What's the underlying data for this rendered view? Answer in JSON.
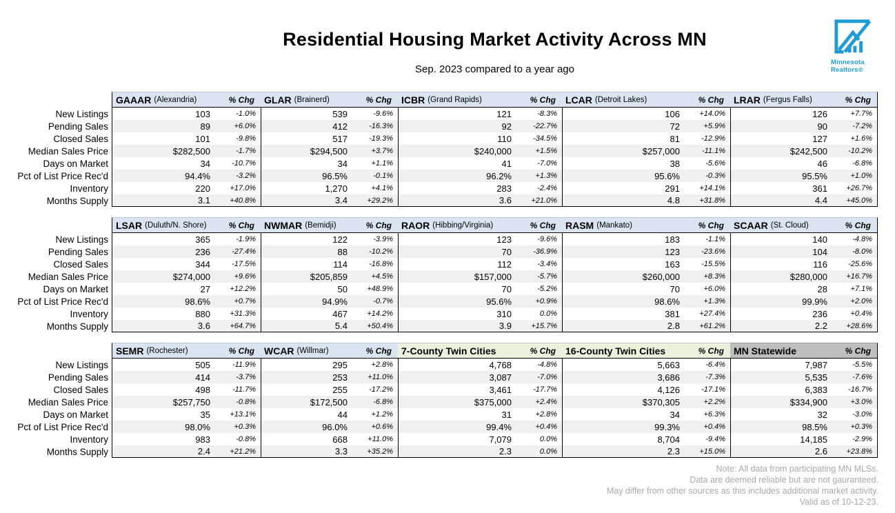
{
  "title": "Residential Housing Market Activity Across MN",
  "subtitle": "Sep. 2023 compared to a year ago",
  "logo": {
    "name_line1": "Minnesota",
    "name_line2": "Realtors®",
    "color": "#1d9bd8"
  },
  "colors": {
    "header_blue": "#dbe5f1",
    "header_green": "#eaf1dd",
    "header_gray": "#bfbfbf",
    "row_stripe": "#f0f0f0",
    "footer_gray": "#a9a9a9"
  },
  "pct_chg_label": "% Chg",
  "row_labels": [
    "New Listings",
    "Pending Sales",
    "Closed Sales",
    "Median Sales Price",
    "Days on Market",
    "Pct of List Price Rec'd",
    "Inventory",
    "Months Supply"
  ],
  "tables": [
    {
      "columns": [
        {
          "acronym": "GAAAR",
          "region": "(Alexandria)",
          "style": "blue",
          "values": [
            "103",
            "89",
            "101",
            "$282,500",
            "34",
            "94.4%",
            "220",
            "3.1"
          ],
          "changes": [
            "-1.0%",
            "+6.0%",
            "-9.8%",
            "-1.7%",
            "-10.7%",
            "-3.2%",
            "+17.0%",
            "+40.8%"
          ]
        },
        {
          "acronym": "GLAR",
          "region": "(Brainerd)",
          "style": "blue",
          "values": [
            "539",
            "412",
            "517",
            "$294,500",
            "34",
            "96.5%",
            "1,270",
            "3.4"
          ],
          "changes": [
            "-9.6%",
            "-16.3%",
            "-19.3%",
            "+3.7%",
            "+1.1%",
            "-0.1%",
            "+4.1%",
            "+29.2%"
          ]
        },
        {
          "acronym": "ICBR",
          "region": "(Grand Rapids)",
          "style": "blue",
          "values": [
            "121",
            "92",
            "110",
            "$240,000",
            "41",
            "96.2%",
            "283",
            "3.6"
          ],
          "changes": [
            "-8.3%",
            "-22.7%",
            "-34.5%",
            "+1.5%",
            "-7.0%",
            "+1.3%",
            "-2.4%",
            "+21.0%"
          ]
        },
        {
          "acronym": "LCAR",
          "region": "(Detroit Lakes)",
          "style": "blue",
          "values": [
            "106",
            "72",
            "81",
            "$257,000",
            "38",
            "95.6%",
            "291",
            "4.8"
          ],
          "changes": [
            "+14.0%",
            "+5.9%",
            "-12.9%",
            "-11.1%",
            "-5.6%",
            "-0.3%",
            "+14.1%",
            "+31.8%"
          ]
        },
        {
          "acronym": "LRAR",
          "region": "(Fergus Falls)",
          "style": "blue",
          "values": [
            "126",
            "90",
            "127",
            "$242,500",
            "46",
            "95.5%",
            "361",
            "4.4"
          ],
          "changes": [
            "+7.7%",
            "-7.2%",
            "+1.6%",
            "-10.2%",
            "-6.8%",
            "+1.0%",
            "+26.7%",
            "+45.0%"
          ]
        }
      ]
    },
    {
      "columns": [
        {
          "acronym": "LSAR",
          "region": "(Duluth/N. Shore)",
          "style": "blue",
          "values": [
            "365",
            "236",
            "344",
            "$274,000",
            "27",
            "98.6%",
            "880",
            "3.6"
          ],
          "changes": [
            "-1.9%",
            "-27.4%",
            "-17.5%",
            "+9.6%",
            "+12.2%",
            "+0.7%",
            "+31.3%",
            "+64.7%"
          ]
        },
        {
          "acronym": "NWMAR",
          "region": "(Bemidji)",
          "style": "blue",
          "values": [
            "122",
            "88",
            "114",
            "$205,859",
            "50",
            "94.9%",
            "467",
            "5.4"
          ],
          "changes": [
            "-3.9%",
            "-10.2%",
            "-16.8%",
            "+4.5%",
            "+48.9%",
            "-0.7%",
            "+14.2%",
            "+50.4%"
          ]
        },
        {
          "acronym": "RAOR",
          "region": "(Hibbing/Virginia)",
          "style": "blue",
          "values": [
            "123",
            "70",
            "112",
            "$157,000",
            "70",
            "95.6%",
            "310",
            "3.9"
          ],
          "changes": [
            "-9.6%",
            "-36.9%",
            "-3.4%",
            "-5.7%",
            "-5.2%",
            "+0.9%",
            "0.0%",
            "+15.7%"
          ]
        },
        {
          "acronym": "RASM",
          "region": "(Mankato)",
          "style": "blue",
          "values": [
            "183",
            "123",
            "163",
            "$260,000",
            "70",
            "98.6%",
            "381",
            "2.8"
          ],
          "changes": [
            "-1.1%",
            "-23.6%",
            "-15.5%",
            "+8.3%",
            "+6.0%",
            "+1.3%",
            "+27.4%",
            "+61.2%"
          ]
        },
        {
          "acronym": "SCAAR",
          "region": "(St. Cloud)",
          "style": "blue",
          "values": [
            "140",
            "104",
            "116",
            "$280,000",
            "28",
            "99.9%",
            "236",
            "2.2"
          ],
          "changes": [
            "-4.8%",
            "-8.0%",
            "-25.6%",
            "+16.7%",
            "+7.1%",
            "+2.0%",
            "+0.4%",
            "+28.6%"
          ]
        }
      ]
    },
    {
      "columns": [
        {
          "acronym": "SEMR",
          "region": "(Rochester)",
          "style": "blue",
          "values": [
            "505",
            "414",
            "498",
            "$257,750",
            "35",
            "98.0%",
            "983",
            "2.4"
          ],
          "changes": [
            "-11.9%",
            "-3.7%",
            "-11.7%",
            "-0.8%",
            "+13.1%",
            "+0.3%",
            "-0.8%",
            "+21.2%"
          ]
        },
        {
          "acronym": "WCAR",
          "region": "(Willmar)",
          "style": "blue",
          "values": [
            "295",
            "253",
            "255",
            "$172,500",
            "44",
            "96.0%",
            "668",
            "3.3"
          ],
          "changes": [
            "+2.8%",
            "+11.0%",
            "-17.2%",
            "-6.8%",
            "+1.2%",
            "+0.6%",
            "+11.0%",
            "+35.2%"
          ]
        },
        {
          "acronym": "7-County Twin Cities",
          "region": "",
          "style": "green",
          "values": [
            "4,768",
            "3,087",
            "3,461",
            "$375,000",
            "31",
            "99.4%",
            "7,079",
            "2.3"
          ],
          "changes": [
            "-4.8%",
            "-7.0%",
            "-17.7%",
            "+2.4%",
            "+2.8%",
            "+0.4%",
            "0.0%",
            "0.0%"
          ]
        },
        {
          "acronym": "16-County Twin Cities",
          "region": "",
          "style": "green",
          "values": [
            "5,663",
            "3,686",
            "4,126",
            "$370,305",
            "34",
            "99.3%",
            "8,704",
            "2.3"
          ],
          "changes": [
            "-6.4%",
            "-7.3%",
            "-17.1%",
            "+2.2%",
            "+6.3%",
            "+0.4%",
            "-9.4%",
            "+15.0%"
          ]
        },
        {
          "acronym": "MN Statewide",
          "region": "",
          "style": "gray",
          "values": [
            "7,987",
            "5,535",
            "6,383",
            "$334,900",
            "32",
            "98.5%",
            "14,185",
            "2.6"
          ],
          "changes": [
            "-5.5%",
            "-7.6%",
            "-16.7%",
            "+3.0%",
            "-3.0%",
            "+0.3%",
            "-2.9%",
            "+23.8%"
          ]
        }
      ]
    }
  ],
  "footer": {
    "lines": [
      "Note:  All data from participating MN MLSs.",
      "Data are deemed reliable but are not gauranteed.",
      "May differ from other sources as this includes additional market activity.",
      "Valid as of 10-12-23."
    ]
  }
}
